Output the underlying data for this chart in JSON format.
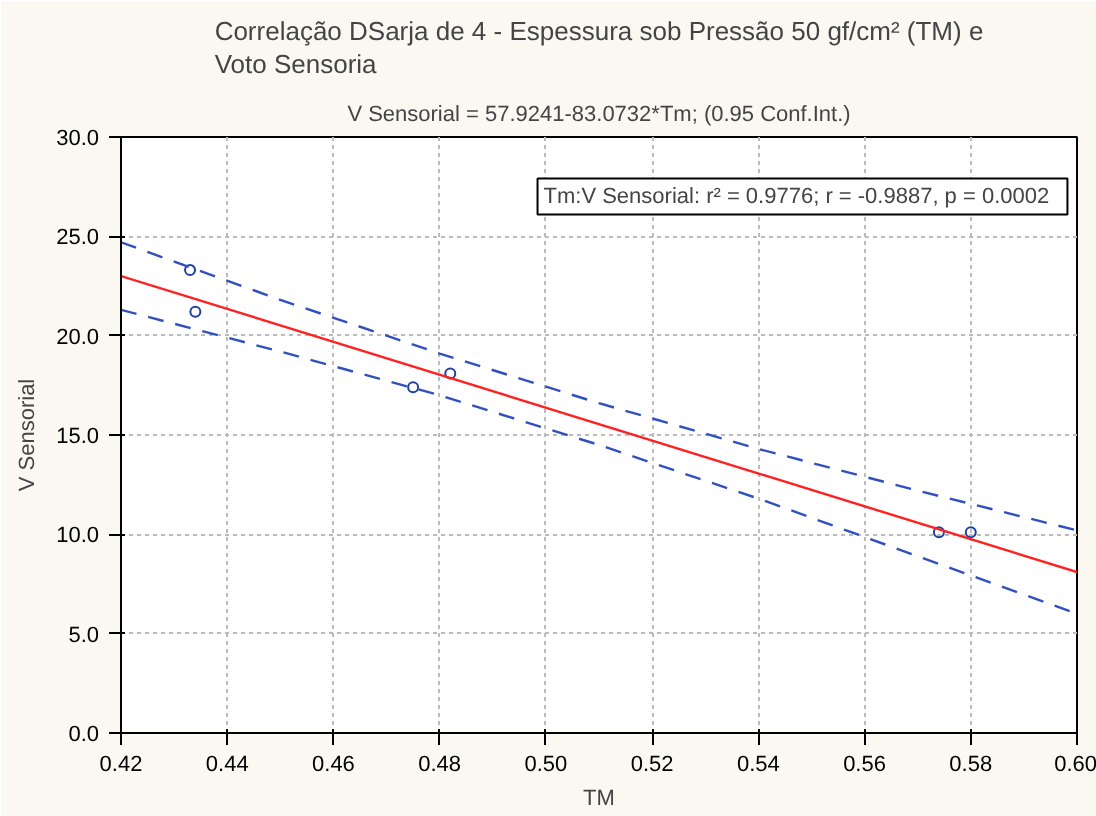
{
  "chart_data": {
    "type": "scatter",
    "title": "Correlação DSarja de 4 - Espessura sob Pressão 50 gf/cm² (TM) e Voto Sensoria",
    "subtitle": "V Sensorial = 57.9241-83.0732*Tm; (0.95 Conf.Int.)",
    "xlabel": "TM",
    "ylabel": "V Sensorial",
    "annotations": [
      "Tm:V Sensorial:  r² = 0.9776;  r = -0.9887, p = 0.0002"
    ],
    "series": [
      {
        "color": "#2040a0",
        "marker": "circle",
        "x": [
          0.433,
          0.434,
          0.475,
          0.482,
          0.574,
          0.58
        ],
        "values": [
          23.3,
          21.2,
          17.4,
          18.1,
          10.1,
          10.1
        ]
      },
      {
        "type": "line",
        "color": "#ff2020",
        "line_style": "solid",
        "x": [
          0.42,
          0.6
        ],
        "values": [
          23.0,
          8.1
        ]
      },
      {
        "type": "line",
        "color": "#3050c0",
        "line_style": "dashed",
        "x": [
          0.42,
          0.45,
          0.48,
          0.51,
          0.54,
          0.57,
          0.6
        ],
        "values": [
          24.7,
          21.8,
          19.1,
          16.6,
          14.3,
          12.2,
          10.2
        ]
      },
      {
        "type": "line",
        "color": "#3050c0",
        "line_style": "dashed",
        "x": [
          0.42,
          0.45,
          0.48,
          0.51,
          0.54,
          0.57,
          0.6
        ],
        "values": [
          21.3,
          19.2,
          17.0,
          14.5,
          11.8,
          8.9,
          6.0
        ]
      }
    ],
    "xlim": [
      0.42,
      0.6
    ],
    "xticks": [
      {
        "value": 0.42,
        "label": "0.42"
      },
      {
        "value": 0.44,
        "label": "0.44"
      },
      {
        "value": 0.46,
        "label": "0.46"
      },
      {
        "value": 0.48,
        "label": "0.48"
      },
      {
        "value": 0.5,
        "label": "0.50"
      },
      {
        "value": 0.52,
        "label": "0.52"
      },
      {
        "value": 0.54,
        "label": "0.54"
      },
      {
        "value": 0.56,
        "label": "0.56"
      },
      {
        "value": 0.58,
        "label": "0.58"
      },
      {
        "value": 0.6,
        "label": "0.60"
      }
    ],
    "ylim": [
      0,
      30
    ],
    "yticks": [
      {
        "value": 0,
        "label": "0.0"
      },
      {
        "value": 5,
        "label": "5.0"
      },
      {
        "value": 10,
        "label": "10.0"
      },
      {
        "value": 15,
        "label": "15.0"
      },
      {
        "value": 20,
        "label": "20.0"
      },
      {
        "value": 25,
        "label": "25.0"
      },
      {
        "value": 30,
        "label": "30.0"
      }
    ],
    "grid": true
  }
}
